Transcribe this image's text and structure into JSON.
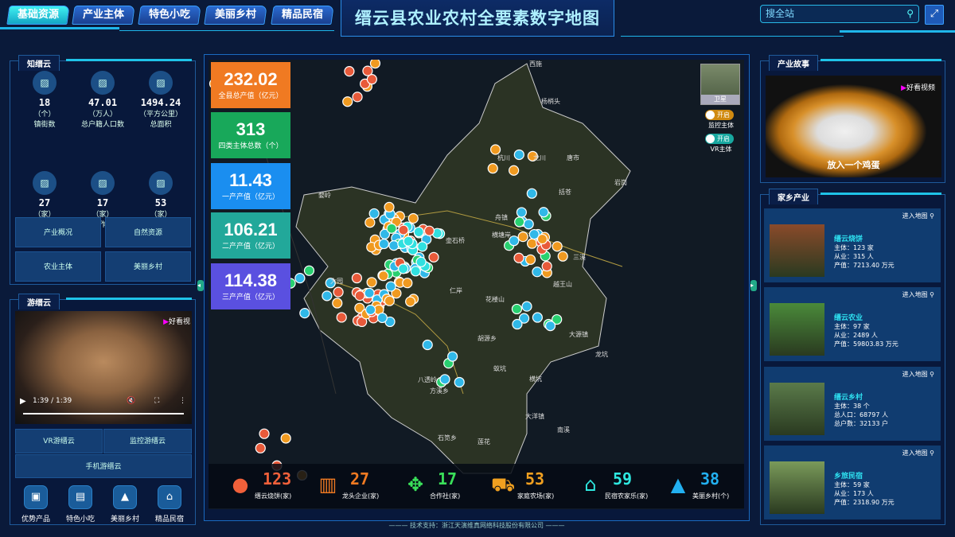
{
  "header": {
    "title": "缙云县农业农村全要素数字地图",
    "tabs": [
      "基础资源",
      "产业主体",
      "特色小吃",
      "美丽乡村",
      "精品民宿"
    ],
    "active_tab": "基础资源",
    "search_placeholder": "搜全站",
    "fullscreen_icon": "expand-icon"
  },
  "know": {
    "title": "知缙云",
    "stats": [
      {
        "value": "18",
        "unit": "（个）",
        "label": "镇街数"
      },
      {
        "value": "47.01",
        "unit": "（万人）",
        "label": "总户籍人口数"
      },
      {
        "value": "1494.24",
        "unit": "（平方公里）",
        "label": "总面积"
      },
      {
        "value": "27",
        "unit": "（家）",
        "label": "龙头企业"
      },
      {
        "value": "17",
        "unit": "（家）",
        "label": "合作社"
      },
      {
        "value": "53",
        "unit": "（家）",
        "label": "家庭农场"
      }
    ],
    "buttons": [
      "产业概况",
      "自然资源",
      "农业主体",
      "美丽乡村"
    ]
  },
  "tour": {
    "title": "游缙云",
    "video_time": "1:39 / 1:39",
    "video_progress": 1.0,
    "watermark": "好看视",
    "buttons": [
      "VR游缙云",
      "监控游缙云",
      "手机游缙云"
    ],
    "icons": [
      {
        "label": "优势产品",
        "icon": "box-icon"
      },
      {
        "label": "特色小吃",
        "icon": "food-icon"
      },
      {
        "label": "美丽乡村",
        "icon": "mountain-icon"
      },
      {
        "label": "精品民宿",
        "icon": "house-icon"
      }
    ]
  },
  "map": {
    "cards": [
      {
        "value": "232.02",
        "label": "全县总产值（亿元）",
        "color": "#f07a22"
      },
      {
        "value": "313",
        "label": "四类主体总数（个）",
        "color": "#18a85a"
      },
      {
        "value": "11.43",
        "label": "一产产值（亿元）",
        "color": "#1a8ef0"
      },
      {
        "value": "106.21",
        "label": "二产产值（亿元）",
        "color": "#22a89a"
      },
      {
        "value": "114.38",
        "label": "三产产值（亿元）",
        "color": "#5a50e0"
      }
    ],
    "layer_label": "卫星",
    "toggles": [
      {
        "state": "开启",
        "label": "监控主体",
        "color": "#d08a10"
      },
      {
        "state": "开启",
        "label": "VR主体",
        "color": "#18a8a0"
      }
    ],
    "places": [
      "西施",
      "杨梢头",
      "杭川",
      "龙川",
      "唐市",
      "括苍",
      "岩岗",
      "婺岭",
      "舟镇",
      "壶石桥",
      "横塘岸",
      "大园",
      "三溪",
      "仁岸",
      "花楼山",
      "越王山",
      "胡源乡",
      "大源镇",
      "龙坑",
      "蚁坑",
      "横坑",
      "八透岭",
      "方溪乡",
      "大洋镇",
      "石笕乡",
      "莲花",
      "南溪"
    ],
    "bottom": [
      {
        "value": "123",
        "label": "缙云烧饼(家)",
        "color": "#f0603a",
        "icon": "cake-icon"
      },
      {
        "value": "27",
        "label": "龙头企业(家)",
        "color": "#f07a22",
        "icon": "building-icon"
      },
      {
        "value": "17",
        "label": "合作社(家)",
        "color": "#3ae05a",
        "icon": "handshake-icon"
      },
      {
        "value": "53",
        "label": "家庭农场(家)",
        "color": "#f0a020",
        "icon": "tractor-icon"
      },
      {
        "value": "59",
        "label": "民宿农家乐(家)",
        "color": "#2ee8e0",
        "icon": "homestay-icon"
      },
      {
        "value": "38",
        "label": "美丽乡村(个)",
        "color": "#22b0f0",
        "icon": "village-icon"
      }
    ],
    "footer": "技术支持：浙江天演维真网络科技股份有限公司"
  },
  "story": {
    "title": "产业故事",
    "caption": "放入一个鸡蛋",
    "watermark": "好看视频"
  },
  "industry": {
    "title": "家乡产业",
    "enter_label": "进入地图",
    "items": [
      {
        "name": "缙云烧饼",
        "lines": [
          "主体：123 家",
          "从业：315 人",
          "产值：7213.40 万元"
        ],
        "color": "#8a4a2a"
      },
      {
        "name": "缙云农业",
        "lines": [
          "主体：97 家",
          "从业：2489 人",
          "产值：59803.83 万元"
        ],
        "color": "#4a8a3a"
      },
      {
        "name": "缙云乡村",
        "lines": [
          "主体：38 个",
          "总人口：68797 人",
          "总户数：32133 户"
        ],
        "color": "#5a7a4a"
      },
      {
        "name": "乡旅民宿",
        "lines": [
          "主体：59 家",
          "从业：173 人",
          "产值：2318.90 万元"
        ],
        "color": "#7a9a5a"
      }
    ]
  }
}
